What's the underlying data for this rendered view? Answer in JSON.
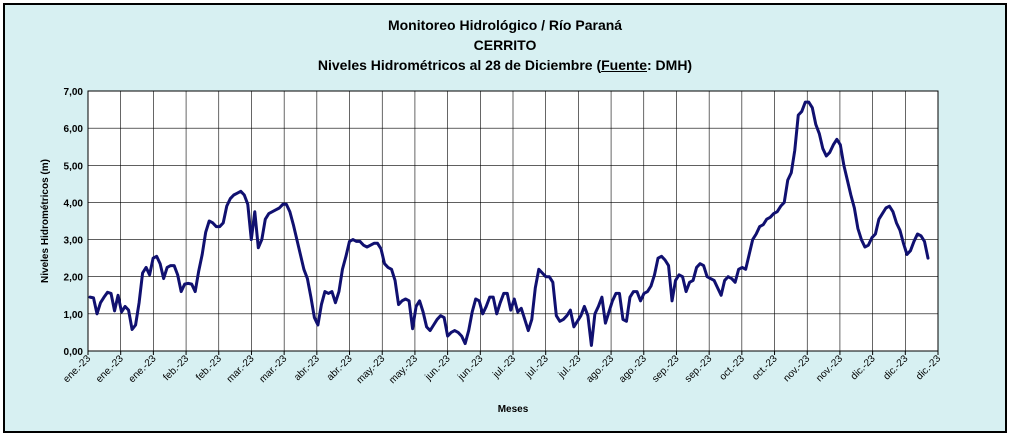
{
  "chart_data": {
    "type": "line",
    "title_line1": "Monitoreo Hidrológico / Río Paraná",
    "title_line2": "CERRITO",
    "title_line3_pre": "Niveles Hidrométricos al 28 de Diciembre (",
    "title_line3_fuente": "Fuente",
    "title_line3_post": ": DMH)",
    "xlabel": "Meses",
    "ylabel": "Niveles Hidrométricos  (m)",
    "ylim": [
      0,
      7
    ],
    "yticks": [
      "0,00",
      "1,00",
      "2,00",
      "3,00",
      "4,00",
      "5,00",
      "6,00",
      "7,00"
    ],
    "xticks": [
      "ene.-23",
      "ene.-23",
      "ene.-23",
      "feb.-23",
      "feb.-23",
      "mar.-23",
      "mar.-23",
      "abr.-23",
      "abr.-23",
      "may.-23",
      "may.-23",
      "jun.-23",
      "jun.-23",
      "jul.-23",
      "jul.-23",
      "jul.-23",
      "ago.-23",
      "ago.-23",
      "sep.-23",
      "sep.-23",
      "oct.-23",
      "oct.-23",
      "nov.-23",
      "nov.-23",
      "dic.-23",
      "dic.-23",
      "dic.-23"
    ],
    "grid": true,
    "line_color": "#101070",
    "series": [
      {
        "values": [
          1.45,
          1.43,
          1.0,
          1.3,
          1.45,
          1.58,
          1.55,
          1.08,
          1.5,
          1.05,
          1.2,
          1.1,
          0.58,
          0.7,
          1.3,
          2.1,
          2.25,
          2.05,
          2.5,
          2.55,
          2.35,
          1.95,
          2.25,
          2.3,
          2.3,
          2.05,
          1.6,
          1.8,
          1.82,
          1.8,
          1.6,
          2.15,
          2.6,
          3.2,
          3.5,
          3.45,
          3.35,
          3.35,
          3.45,
          3.9,
          4.1,
          4.2,
          4.25,
          4.3,
          4.2,
          3.95,
          3.0,
          3.75,
          2.78,
          3.0,
          3.55,
          3.7,
          3.75,
          3.8,
          3.85,
          3.95,
          3.95,
          3.75,
          3.4,
          3.0,
          2.6,
          2.2,
          1.95,
          1.45,
          0.9,
          0.7,
          1.25,
          1.6,
          1.55,
          1.6,
          1.3,
          1.6,
          2.2,
          2.55,
          2.95,
          3.0,
          2.95,
          2.95,
          2.85,
          2.8,
          2.85,
          2.9,
          2.9,
          2.75,
          2.35,
          2.25,
          2.2,
          1.9,
          1.25,
          1.35,
          1.4,
          1.35,
          0.6,
          1.2,
          1.35,
          1.05,
          0.65,
          0.55,
          0.7,
          0.85,
          0.95,
          0.9,
          0.4,
          0.5,
          0.55,
          0.5,
          0.4,
          0.2,
          0.55,
          1.05,
          1.4,
          1.35,
          1.0,
          1.2,
          1.45,
          1.45,
          1.0,
          1.3,
          1.55,
          1.55,
          1.1,
          1.4,
          1.05,
          1.15,
          0.85,
          0.55,
          0.85,
          1.7,
          2.2,
          2.1,
          2.0,
          2.0,
          1.85,
          0.95,
          0.8,
          0.85,
          0.95,
          1.1,
          0.65,
          0.8,
          0.95,
          1.2,
          0.95,
          0.15,
          1.0,
          1.2,
          1.45,
          0.75,
          1.05,
          1.35,
          1.55,
          1.55,
          0.85,
          0.8,
          1.45,
          1.6,
          1.6,
          1.35,
          1.55,
          1.6,
          1.75,
          2.05,
          2.5,
          2.55,
          2.45,
          2.3,
          1.35,
          1.9,
          2.05,
          2.0,
          1.6,
          1.85,
          1.9,
          2.25,
          2.35,
          2.3,
          2.0,
          1.95,
          1.9,
          1.7,
          1.5,
          1.9,
          2.0,
          1.95,
          1.85,
          2.2,
          2.25,
          2.2,
          2.6,
          3.0,
          3.15,
          3.35,
          3.4,
          3.55,
          3.6,
          3.7,
          3.75,
          3.9,
          4.0,
          4.6,
          4.8,
          5.4,
          6.35,
          6.45,
          6.7,
          6.7,
          6.55,
          6.1,
          5.85,
          5.45,
          5.25,
          5.35,
          5.55,
          5.7,
          5.55,
          5.0,
          4.6,
          4.2,
          3.85,
          3.3,
          3.0,
          2.8,
          2.85,
          3.05,
          3.15,
          3.55,
          3.7,
          3.85,
          3.9,
          3.75,
          3.45,
          3.25,
          2.9,
          2.6,
          2.7,
          2.95,
          3.15,
          3.1,
          2.95,
          2.5
        ]
      }
    ]
  }
}
